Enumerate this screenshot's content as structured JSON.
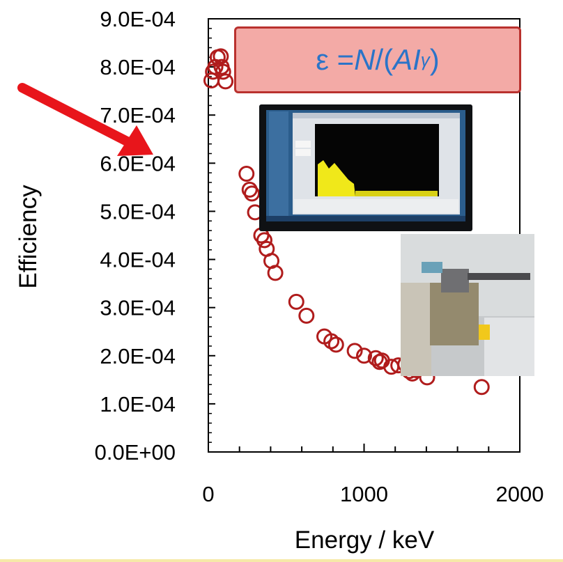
{
  "chart_data": {
    "type": "scatter",
    "title": "",
    "xlabel": "Energy / keV",
    "ylabel": "Efficiency",
    "xlim": [
      0,
      2000
    ],
    "ylim": [
      0,
      0.0009
    ],
    "x_ticks": [
      "0",
      "1000",
      "2000"
    ],
    "y_ticks": [
      "0.0E+00",
      "1.0E-04",
      "2.0E-04",
      "3.0E-04",
      "4.0E-04",
      "5.0E-04",
      "6.0E-04",
      "7.0E-04",
      "8.0E-04",
      "9.0E-04"
    ],
    "grid": false,
    "marker": "open-circle",
    "marker_color": "#b01c1c",
    "points": [
      {
        "x": 20,
        "y": 0.000772
      },
      {
        "x": 30,
        "y": 0.00079
      },
      {
        "x": 45,
        "y": 0.0008
      },
      {
        "x": 60,
        "y": 0.00082
      },
      {
        "x": 80,
        "y": 0.000822
      },
      {
        "x": 85,
        "y": 0.0008
      },
      {
        "x": 95,
        "y": 0.00079
      },
      {
        "x": 110,
        "y": 0.00077
      },
      {
        "x": 245,
        "y": 0.000578
      },
      {
        "x": 265,
        "y": 0.000545
      },
      {
        "x": 280,
        "y": 0.000537
      },
      {
        "x": 300,
        "y": 0.000498
      },
      {
        "x": 340,
        "y": 0.00045
      },
      {
        "x": 360,
        "y": 0.00044
      },
      {
        "x": 375,
        "y": 0.000422
      },
      {
        "x": 405,
        "y": 0.000397
      },
      {
        "x": 430,
        "y": 0.000372
      },
      {
        "x": 565,
        "y": 0.000312
      },
      {
        "x": 630,
        "y": 0.000283
      },
      {
        "x": 745,
        "y": 0.00024
      },
      {
        "x": 790,
        "y": 0.00023
      },
      {
        "x": 820,
        "y": 0.000223
      },
      {
        "x": 940,
        "y": 0.00021
      },
      {
        "x": 1000,
        "y": 0.0002
      },
      {
        "x": 1075,
        "y": 0.000195
      },
      {
        "x": 1100,
        "y": 0.000187
      },
      {
        "x": 1115,
        "y": 0.00019
      },
      {
        "x": 1175,
        "y": 0.000177
      },
      {
        "x": 1220,
        "y": 0.00018
      },
      {
        "x": 1265,
        "y": 0.000182
      },
      {
        "x": 1290,
        "y": 0.000168
      },
      {
        "x": 1310,
        "y": 0.000163
      },
      {
        "x": 1335,
        "y": 0.00017
      },
      {
        "x": 1405,
        "y": 0.000155
      },
      {
        "x": 1755,
        "y": 0.000135
      }
    ],
    "annotation": {
      "prefix": "ε = ",
      "n": "N",
      "mid": "/(",
      "a": "A ",
      "i": "I",
      "sub": "γ",
      "suffix": ")"
    },
    "arrow_color": "#e8151b",
    "box_color": "#f3aaa6",
    "box_border": "#b9312e",
    "equation_color": "#2a74c8"
  },
  "images": [
    {
      "name": "gamma-spectrum-monitor-photo"
    },
    {
      "name": "hpge-detector-lab-photo"
    }
  ]
}
